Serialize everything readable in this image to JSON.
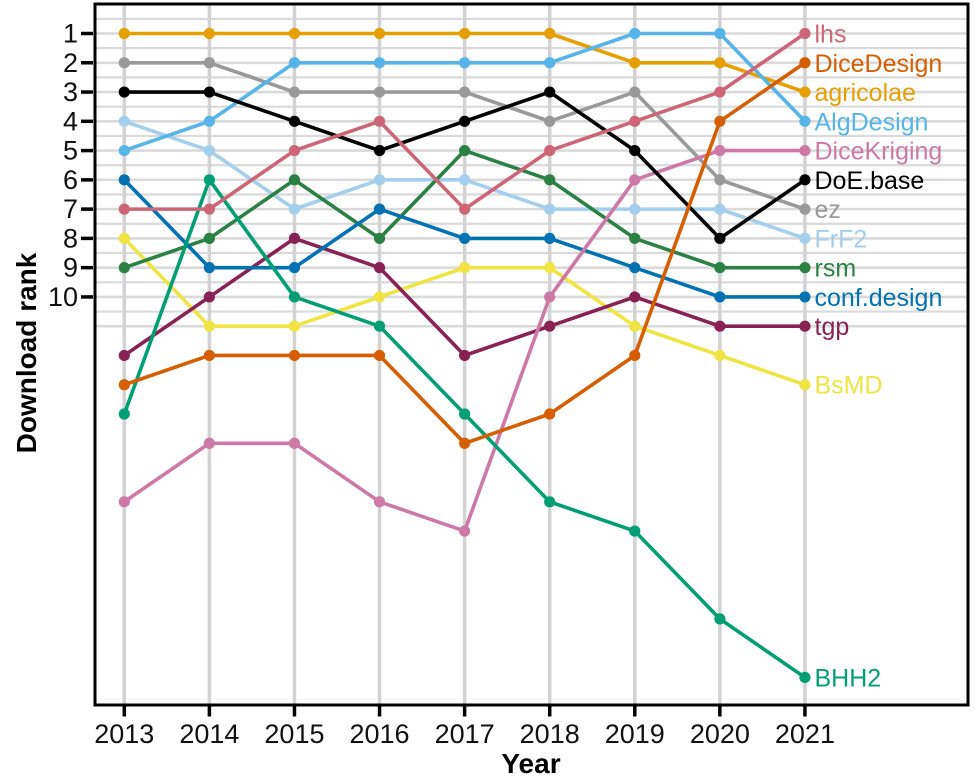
{
  "chart_data": {
    "type": "line",
    "title": "",
    "xlabel": "Year",
    "ylabel": "Download rank",
    "x": [
      2013,
      2014,
      2015,
      2016,
      2017,
      2018,
      2019,
      2020,
      2021
    ],
    "x_tick_labels": [
      "2013",
      "2014",
      "2015",
      "2016",
      "2017",
      "2018",
      "2019",
      "2020",
      "2021"
    ],
    "y_tick_labels": [
      "1",
      "2",
      "3",
      "4",
      "5",
      "6",
      "7",
      "8",
      "9",
      "10"
    ],
    "y_ticks": [
      1,
      2,
      3,
      4,
      5,
      6,
      7,
      8,
      9,
      10
    ],
    "y_range": [
      1,
      23
    ],
    "y_inverted": true,
    "grid": {
      "horizontal": "every 0.5 rank from 0.5 to 11",
      "vertical": "every year",
      "h_color": "#DADADA",
      "v_color": "#D2D2D2"
    },
    "legend_position": "labels right of last point",
    "series": [
      {
        "name": "lhs",
        "color": "#CC6677",
        "values": [
          7,
          7,
          5,
          4,
          7,
          5,
          4,
          3,
          1
        ]
      },
      {
        "name": "DiceDesign",
        "color": "#D55E00",
        "values": [
          13,
          12,
          12,
          12,
          15,
          14,
          12,
          4,
          2
        ]
      },
      {
        "name": "agricolae",
        "color": "#E69F00",
        "values": [
          1,
          1,
          1,
          1,
          1,
          1,
          2,
          2,
          3
        ]
      },
      {
        "name": "AlgDesign",
        "color": "#56B4E9",
        "values": [
          5,
          4,
          2,
          2,
          2,
          2,
          1,
          1,
          4
        ]
      },
      {
        "name": "DiceKriging",
        "color": "#CC79A7",
        "values": [
          17,
          15,
          15,
          17,
          18,
          10,
          6,
          5,
          5
        ]
      },
      {
        "name": "DoE.base",
        "color": "#000000",
        "values": [
          3,
          3,
          4,
          5,
          4,
          3,
          5,
          8,
          6
        ]
      },
      {
        "name": "ez",
        "color": "#999999",
        "values": [
          2,
          2,
          3,
          3,
          3,
          4,
          3,
          6,
          7
        ]
      },
      {
        "name": "FrF2",
        "color": "#A3CFEC",
        "values": [
          4,
          5,
          7,
          6,
          6,
          7,
          7,
          7,
          8
        ]
      },
      {
        "name": "rsm",
        "color": "#2B8043",
        "values": [
          9,
          8,
          6,
          8,
          5,
          6,
          8,
          9,
          9
        ]
      },
      {
        "name": "conf.design",
        "color": "#0072B2",
        "values": [
          6,
          9,
          9,
          7,
          8,
          8,
          9,
          10,
          10
        ]
      },
      {
        "name": "tgp",
        "color": "#882255",
        "values": [
          12,
          10,
          8,
          9,
          12,
          11,
          10,
          11,
          11
        ]
      },
      {
        "name": "BsMD",
        "color": "#F0E442",
        "values": [
          8,
          11,
          11,
          10,
          9,
          9,
          11,
          12,
          13
        ]
      },
      {
        "name": "BHH2",
        "color": "#009E73",
        "values": [
          14,
          6,
          10,
          11,
          14,
          17,
          18,
          21,
          23
        ]
      }
    ]
  },
  "colors": {
    "background": "#FFFFFF",
    "panel_border": "#000000",
    "tick": "#000000",
    "tick_label": "#111111"
  }
}
